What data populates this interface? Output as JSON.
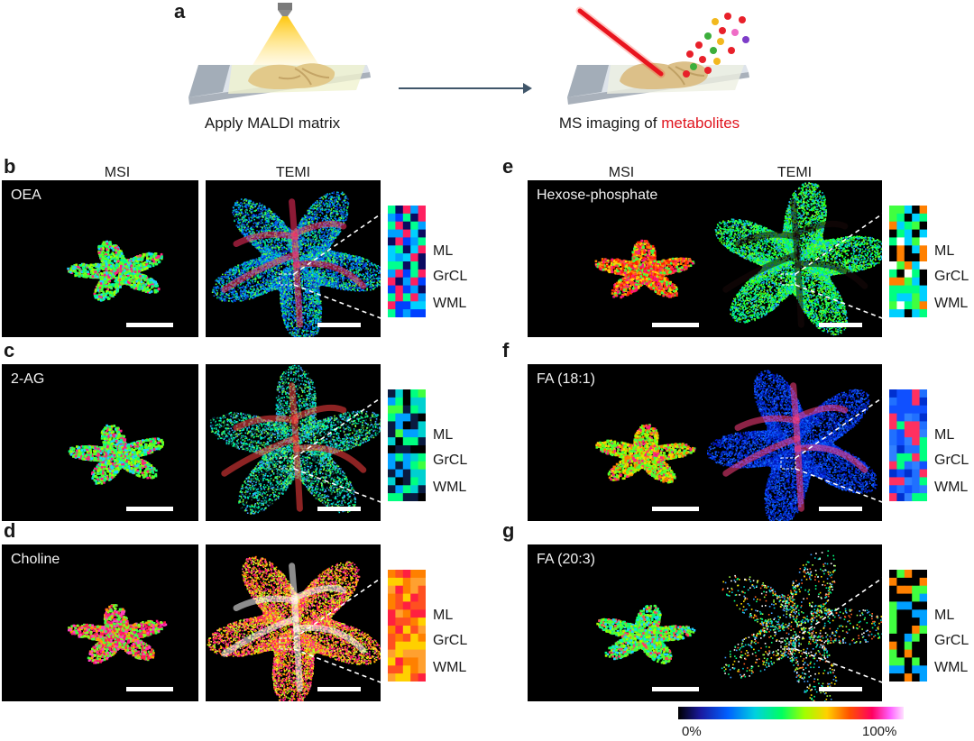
{
  "panel_a": {
    "label": "a",
    "left_caption": "Apply MALDI matrix",
    "right_caption_prefix": "MS imaging of ",
    "right_caption_highlight": "metabolites",
    "highlight_color": "#e0141e"
  },
  "column_headers": {
    "msi": "MSI",
    "temi": "TEMI"
  },
  "layer_labels": {
    "ml": "ML",
    "grcl": "GrCL",
    "wml": "WML"
  },
  "panels": [
    {
      "label": "b",
      "metabolite": "OEA",
      "scheme": "blue"
    },
    {
      "label": "c",
      "metabolite": "2-AG",
      "scheme": "sparse"
    },
    {
      "label": "d",
      "metabolite": "Choline",
      "scheme": "hot"
    },
    {
      "label": "e",
      "metabolite": "Hexose-phosphate",
      "scheme": "green"
    },
    {
      "label": "f",
      "metabolite": "FA (18:1)",
      "scheme": "deepblue"
    },
    {
      "label": "g",
      "metabolite": "FA (20:3)",
      "scheme": "faint"
    }
  ],
  "colorbar": {
    "min_label": "0%",
    "max_label": "100%"
  }
}
